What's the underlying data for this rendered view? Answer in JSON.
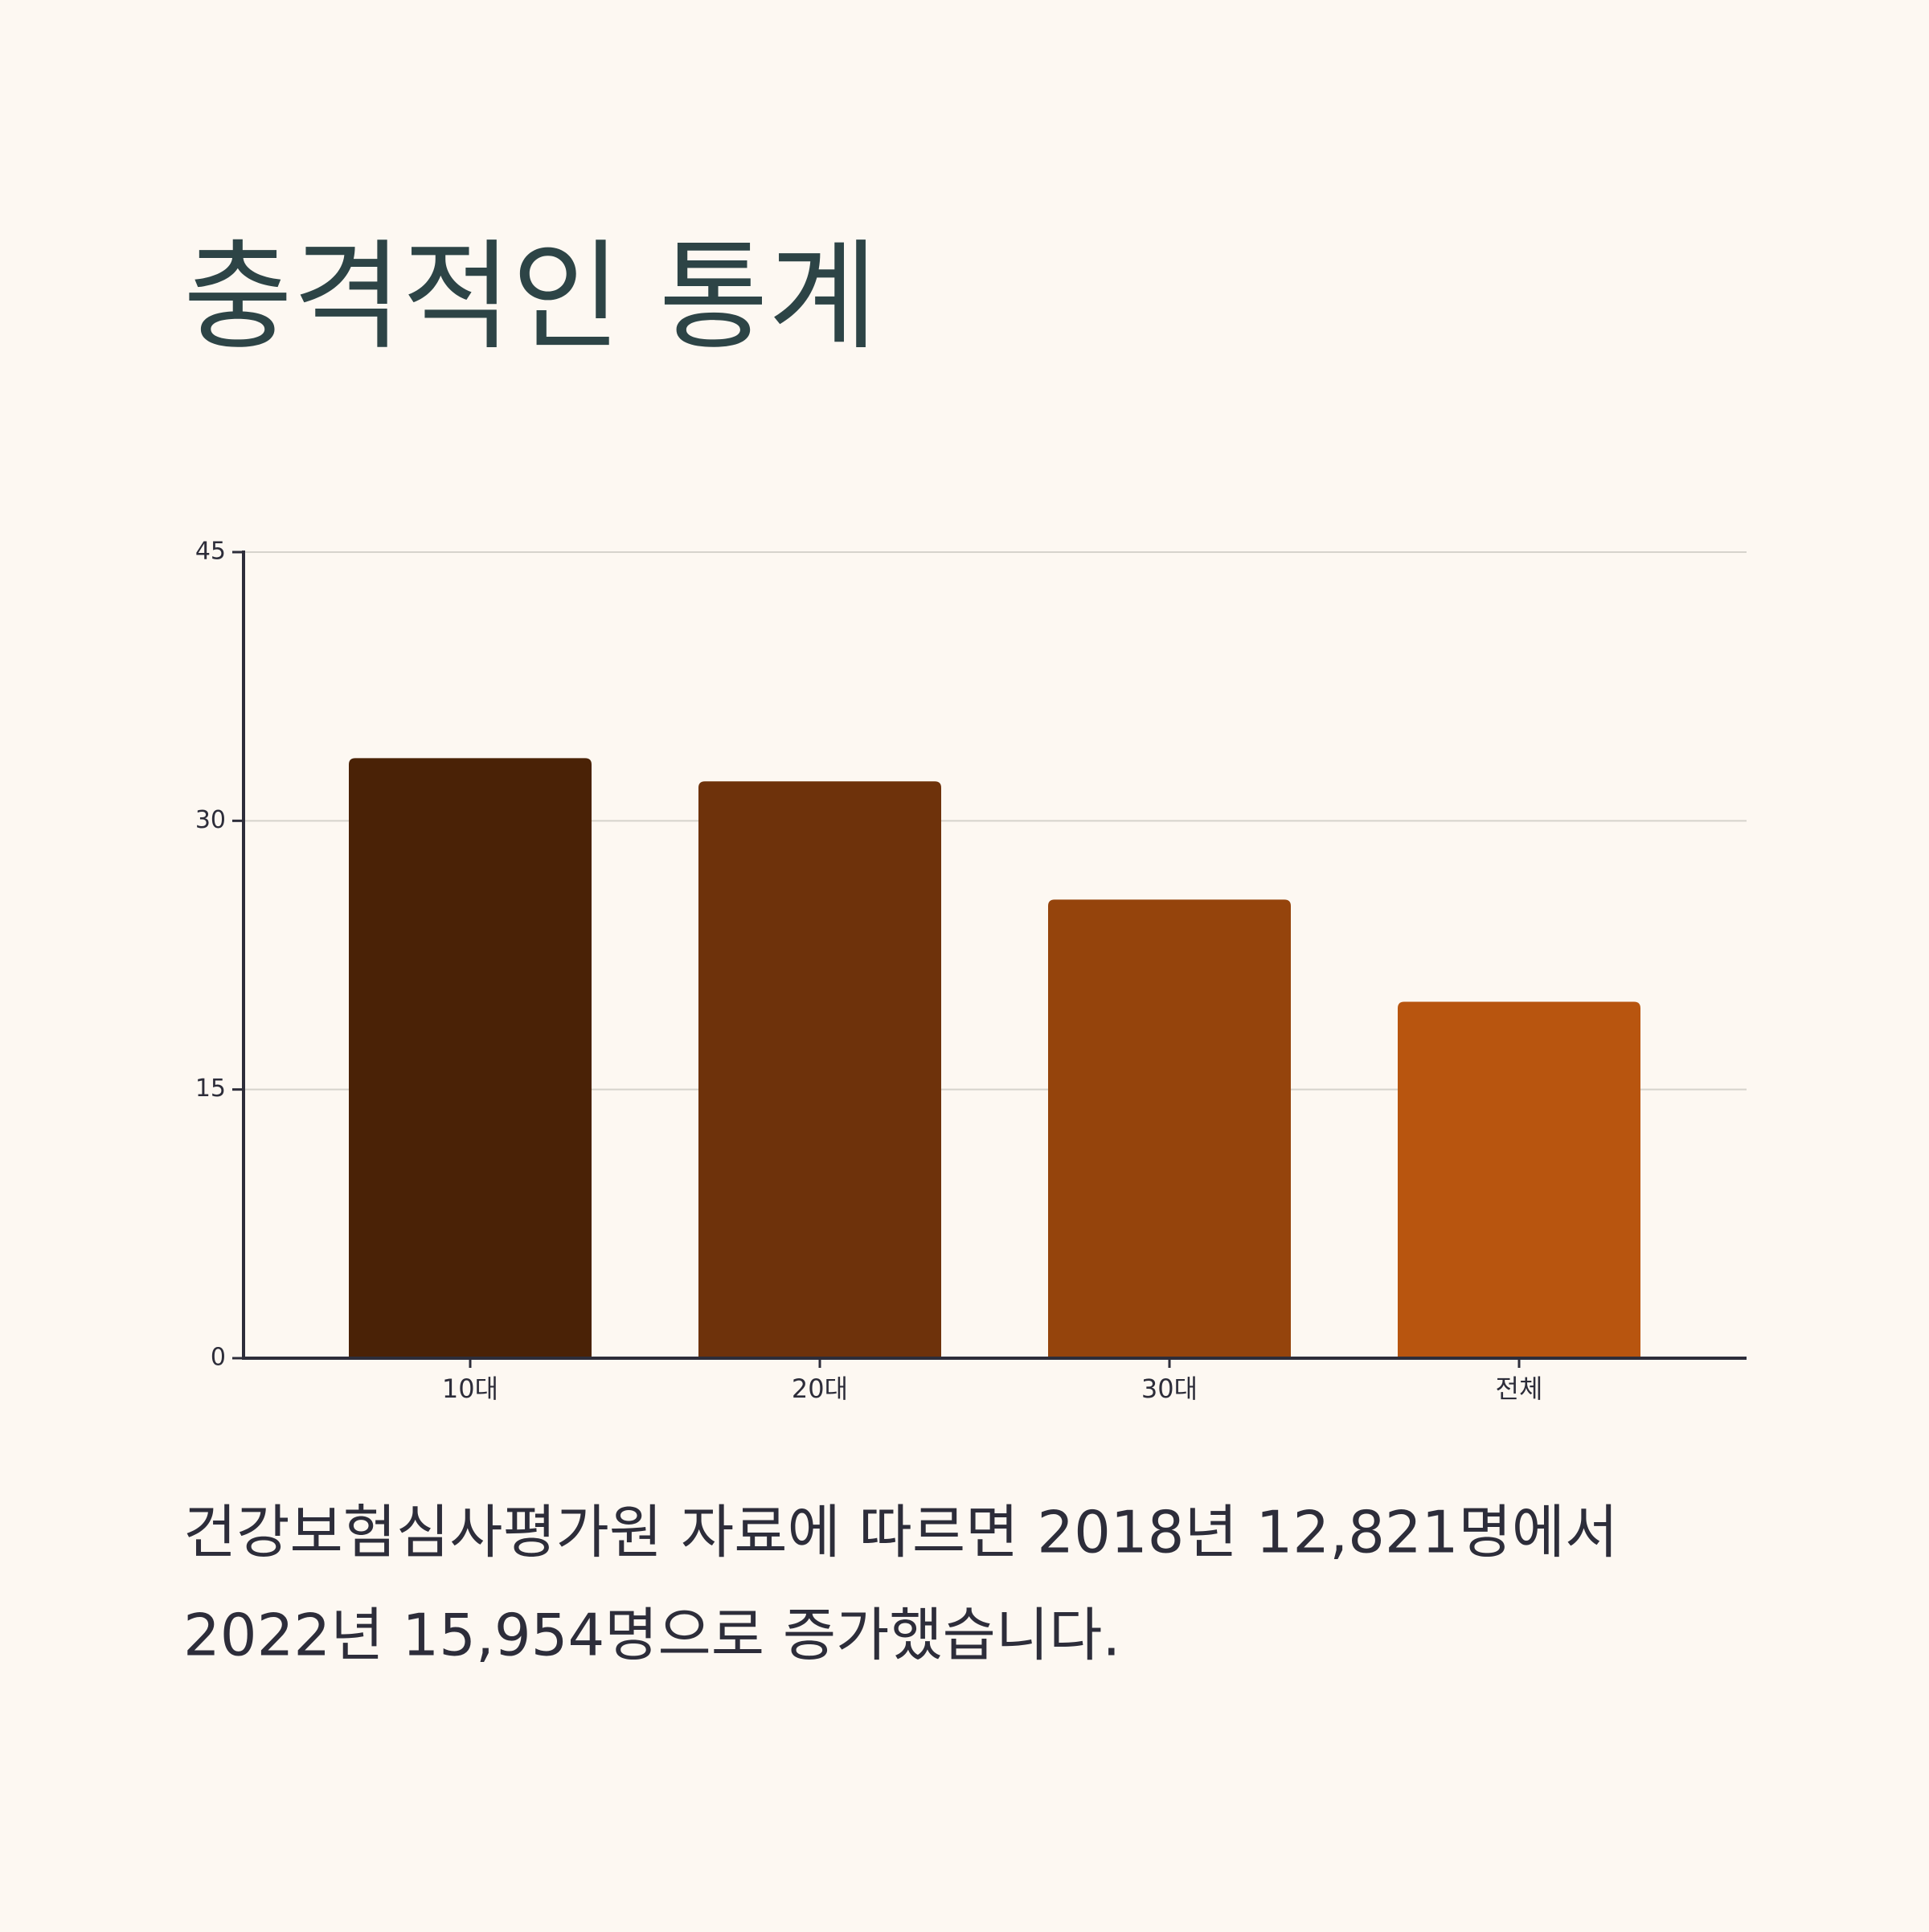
{
  "chart_data": {
    "type": "bar",
    "title": "충격적인 통계",
    "categories": [
      "10대",
      "20대",
      "30대",
      "전체"
    ],
    "values": [
      33.5,
      32.2,
      25.6,
      19.9
    ],
    "colors": [
      "#4a2206",
      "#6e320b",
      "#95440c",
      "#b8550f"
    ],
    "ylim": [
      0,
      45
    ],
    "yticks": [
      0,
      15,
      30,
      45
    ],
    "grid": true
  },
  "caption": [
    "건강보험심사평가원 자료에 따르면 2018년 12,821명에서",
    "2022년 15,954명으로 증가했습니다."
  ]
}
